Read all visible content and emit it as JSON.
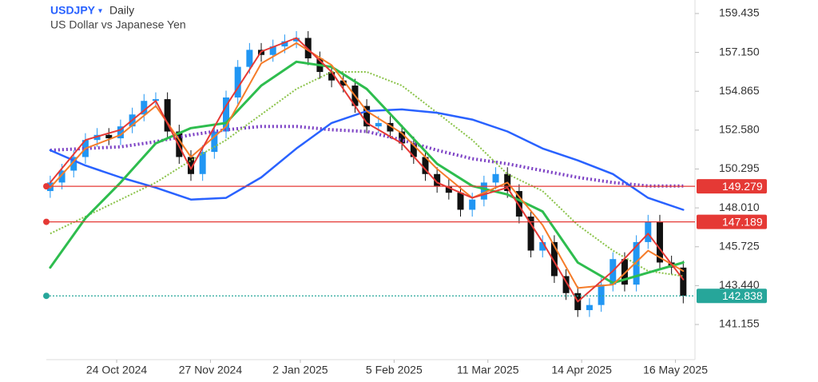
{
  "chart_data": {
    "type": "candlestick",
    "title": "USDJPY",
    "interval": "Daily",
    "subtitle": "US Dollar vs Japanese Yen",
    "xlim": [
      -18,
      148
    ],
    "ylim": [
      139.09,
      160.23
    ],
    "xticks": [
      {
        "value": 0,
        "label": "24 Oct 2024"
      },
      {
        "value": 24,
        "label": "27 Nov 2024"
      },
      {
        "value": 47,
        "label": "2 Jan 2025"
      },
      {
        "value": 71,
        "label": "5 Feb 2025"
      },
      {
        "value": 95,
        "label": "11 Mar 2025"
      },
      {
        "value": 119,
        "label": "14 Apr 2025"
      },
      {
        "value": 143,
        "label": "16 May 2025"
      }
    ],
    "yticks": [
      159.435,
      {
        "value": 157.15,
        "label": "157.150"
      },
      154.865,
      {
        "value": 152.58,
        "label": "152.580"
      },
      150.295,
      {
        "value": 148.01,
        "label": "148.010"
      },
      145.725,
      {
        "value": 143.44,
        "label": "143.440"
      },
      141.155
    ],
    "up_color": "#2196f3",
    "down_color": "#111111",
    "x": [
      -17,
      -14,
      -11,
      -8,
      -5,
      -2,
      1,
      4,
      7,
      10,
      13,
      16,
      19,
      22,
      25,
      28,
      31,
      34,
      37,
      40,
      43,
      46,
      49,
      52,
      55,
      58,
      61,
      64,
      67,
      70,
      73,
      76,
      79,
      82,
      85,
      88,
      91,
      94,
      97,
      100,
      103,
      106,
      109,
      112,
      115,
      118,
      121,
      124,
      127,
      130,
      133,
      136,
      139,
      142,
      145
    ],
    "open": [
      149.0,
      149.5,
      150.2,
      151.0,
      152.0,
      152.3,
      152.1,
      152.8,
      153.5,
      154.3,
      154.4,
      152.5,
      151.0,
      150.0,
      151.3,
      152.5,
      154.5,
      156.3,
      157.3,
      157.0,
      157.5,
      157.8,
      158.0,
      156.8,
      156.0,
      155.5,
      155.2,
      154.0,
      152.8,
      153.0,
      152.5,
      151.8,
      151.0,
      150.0,
      149.3,
      148.9,
      147.9,
      148.5,
      149.5,
      150.0,
      149.0,
      147.5,
      145.5,
      146.0,
      144.0,
      143.0,
      142.0,
      142.3,
      143.5,
      145.0,
      143.5,
      146.0,
      147.2,
      144.8,
      144.5
    ],
    "high": [
      149.9,
      150.6,
      151.4,
      152.4,
      152.7,
      152.7,
      153.2,
      153.9,
      154.7,
      154.8,
      154.8,
      152.9,
      151.4,
      151.7,
      152.9,
      154.9,
      156.7,
      157.7,
      157.7,
      157.9,
      158.2,
      158.4,
      158.4,
      157.2,
      156.4,
      155.9,
      155.6,
      154.4,
      153.4,
      153.4,
      152.9,
      152.2,
      151.4,
      150.4,
      149.7,
      149.3,
      148.9,
      149.9,
      150.4,
      150.4,
      149.4,
      147.9,
      146.4,
      146.4,
      144.4,
      143.4,
      142.7,
      143.9,
      145.4,
      145.4,
      146.4,
      147.6,
      147.6,
      145.2,
      144.9
    ],
    "low": [
      148.6,
      149.1,
      149.8,
      150.6,
      151.6,
      151.7,
      151.7,
      152.4,
      153.1,
      153.9,
      152.1,
      150.6,
      149.6,
      149.6,
      150.9,
      152.1,
      154.1,
      155.9,
      156.6,
      156.6,
      157.1,
      157.4,
      156.4,
      155.6,
      155.1,
      154.8,
      153.6,
      152.4,
      152.4,
      152.1,
      151.4,
      150.6,
      149.6,
      148.9,
      148.5,
      147.5,
      147.5,
      148.1,
      149.1,
      148.6,
      147.1,
      145.1,
      145.1,
      143.6,
      142.6,
      141.6,
      141.6,
      141.9,
      143.1,
      143.1,
      143.1,
      145.6,
      144.4,
      144.1,
      142.4
    ],
    "close": [
      149.5,
      150.2,
      151.0,
      152.0,
      152.3,
      152.1,
      152.8,
      153.5,
      154.3,
      154.4,
      152.5,
      151.0,
      150.0,
      151.3,
      152.5,
      154.5,
      156.3,
      157.3,
      157.0,
      157.5,
      157.8,
      158.0,
      156.8,
      156.0,
      155.5,
      155.2,
      154.0,
      152.8,
      153.0,
      152.5,
      151.8,
      151.0,
      150.0,
      149.3,
      148.9,
      147.9,
      148.5,
      149.5,
      150.0,
      149.0,
      147.5,
      145.5,
      146.0,
      144.0,
      143.0,
      142.0,
      142.3,
      143.5,
      145.0,
      143.5,
      146.0,
      147.2,
      144.8,
      144.5,
      142.838
    ],
    "line_x": [
      -17,
      -8,
      1,
      10,
      19,
      28,
      37,
      46,
      55,
      64,
      73,
      82,
      91,
      100,
      109,
      118,
      127,
      136,
      145
    ],
    "lines": [
      {
        "color": "#7b3fc4",
        "width": 4,
        "dash": "2,3",
        "values": [
          151.4,
          151.5,
          151.6,
          151.9,
          152.3,
          152.6,
          152.8,
          152.8,
          152.6,
          152.5,
          152.0,
          151.4,
          150.9,
          150.6,
          150.2,
          149.8,
          149.5,
          149.3,
          149.3
        ]
      },
      {
        "color": "#8bc34a",
        "width": 2,
        "dash": "2,2",
        "values": [
          146.5,
          147.5,
          148.5,
          149.5,
          150.8,
          152.0,
          153.5,
          155.0,
          156.0,
          156.0,
          155.2,
          153.6,
          152.0,
          150.0,
          149.0,
          147.0,
          145.5,
          144.3,
          144.0
        ]
      },
      {
        "color": "#2962ff",
        "width": 2.5,
        "dash": "none",
        "values": [
          151.4,
          150.5,
          149.8,
          149.2,
          148.5,
          148.6,
          149.8,
          151.5,
          153.0,
          153.7,
          153.8,
          153.6,
          153.2,
          152.5,
          151.5,
          150.8,
          150.0,
          148.6,
          147.9
        ]
      },
      {
        "color": "#2ebd4e",
        "width": 3,
        "dash": "none",
        "values": [
          144.5,
          147.4,
          149.5,
          151.8,
          152.7,
          153.0,
          155.2,
          156.6,
          156.3,
          155.0,
          152.8,
          150.6,
          149.3,
          148.8,
          147.8,
          144.8,
          143.6,
          144.2,
          144.8
        ]
      },
      {
        "color": "#f57c2a",
        "width": 2,
        "dash": "none",
        "values": [
          149.2,
          151.5,
          152.3,
          154.0,
          151.0,
          152.8,
          156.5,
          157.7,
          156.4,
          153.7,
          152.4,
          150.3,
          148.6,
          149.5,
          147.0,
          143.3,
          143.5,
          145.5,
          144.3
        ]
      },
      {
        "color": "#e53935",
        "width": 2,
        "dash": "none",
        "values": [
          149.5,
          152.0,
          152.6,
          154.3,
          150.3,
          154.0,
          157.2,
          158.0,
          156.0,
          153.0,
          151.8,
          149.5,
          148.6,
          149.2,
          146.0,
          142.5,
          144.3,
          146.5,
          143.8
        ]
      }
    ],
    "levels": [
      {
        "value": 149.279,
        "color": "#e53935",
        "dash": "none"
      },
      {
        "value": 147.189,
        "color": "#e53935",
        "dash": "none"
      },
      {
        "value": 142.838,
        "color": "#26a69a",
        "dash": "2,2"
      }
    ]
  }
}
